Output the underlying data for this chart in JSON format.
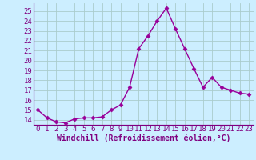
{
  "x": [
    0,
    1,
    2,
    3,
    4,
    5,
    6,
    7,
    8,
    9,
    10,
    11,
    12,
    13,
    14,
    15,
    16,
    17,
    18,
    19,
    20,
    21,
    22,
    23
  ],
  "y": [
    15.0,
    14.2,
    13.8,
    13.7,
    14.1,
    14.2,
    14.2,
    14.3,
    15.0,
    15.5,
    17.3,
    21.2,
    22.5,
    24.0,
    25.3,
    23.2,
    21.2,
    19.2,
    17.3,
    18.3,
    17.3,
    17.0,
    16.7,
    16.6
  ],
  "line_color": "#990099",
  "marker": "D",
  "markersize": 2.5,
  "linewidth": 1.0,
  "bg_color": "#cceeff",
  "grid_color": "#aacccc",
  "xlabel": "Windchill (Refroidissement éolien,°C)",
  "xlim": [
    -0.5,
    23.5
  ],
  "ylim": [
    13.5,
    25.8
  ],
  "yticks": [
    14,
    15,
    16,
    17,
    18,
    19,
    20,
    21,
    22,
    23,
    24,
    25
  ],
  "xticks": [
    0,
    1,
    2,
    3,
    4,
    5,
    6,
    7,
    8,
    9,
    10,
    11,
    12,
    13,
    14,
    15,
    16,
    17,
    18,
    19,
    20,
    21,
    22,
    23
  ],
  "xlabel_fontsize": 7.0,
  "tick_fontsize": 6.5,
  "line_color_axis": "#800080",
  "spine_color": "#800080"
}
